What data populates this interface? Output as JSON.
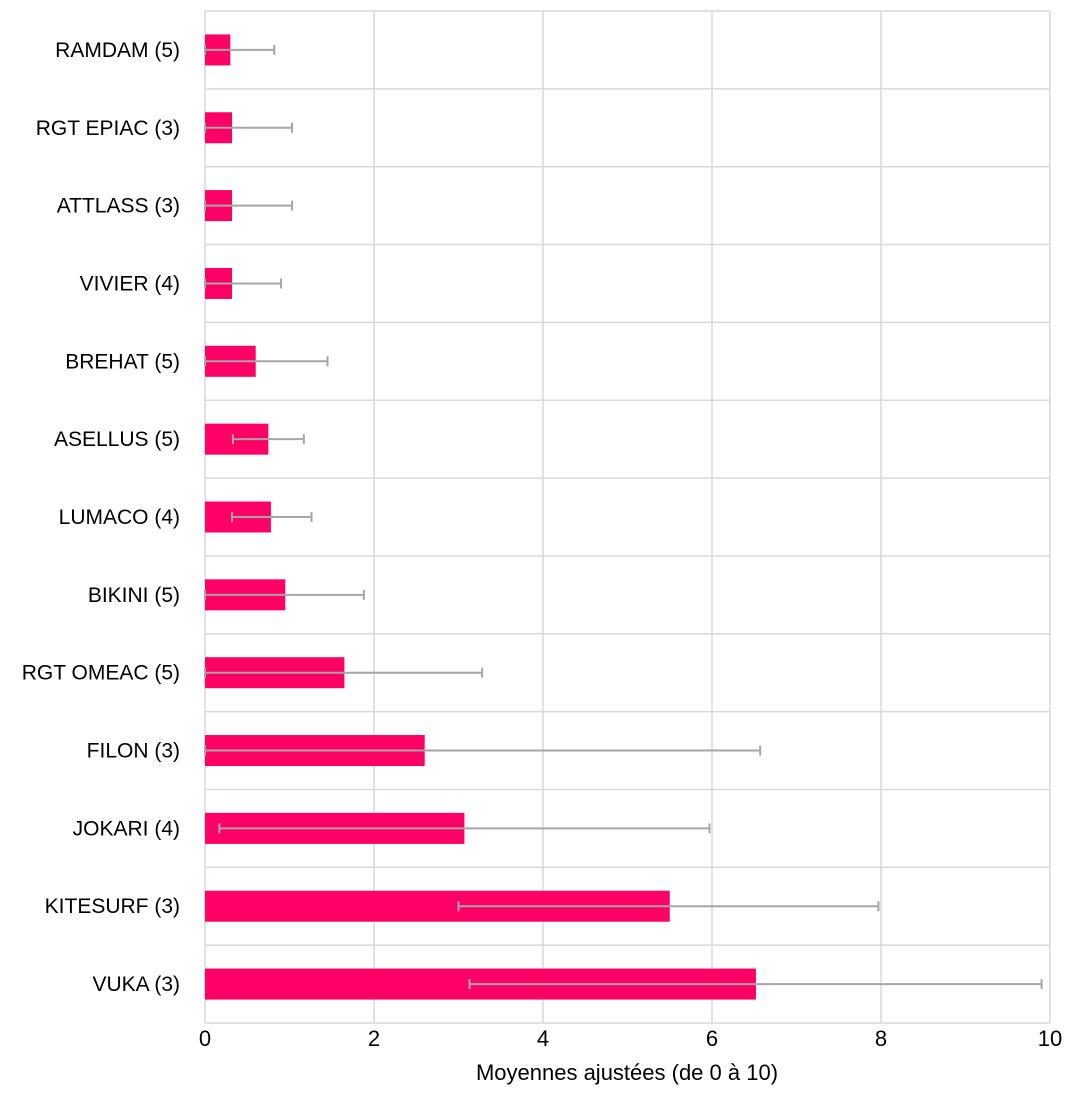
{
  "chart_data": {
    "type": "bar",
    "orientation": "horizontal",
    "title": "",
    "xlabel": "Moyennes ajustées (de 0 à 10)",
    "ylabel": "",
    "xlim": [
      0,
      10
    ],
    "x_ticks": [
      0,
      2,
      4,
      6,
      8,
      10
    ],
    "x_tick_labels": [
      "0",
      "2",
      "4",
      "6",
      "8",
      "10"
    ],
    "grid": true,
    "legend": "none",
    "bar_color": "#ff0066",
    "errorbar_color": "#a6a6a6",
    "grid_color": "#d9d9d9",
    "categories": [
      "RAMDAM (5)",
      "RGT EPIAC (3)",
      "ATTLASS (3)",
      "VIVIER (4)",
      "BREHAT (5)",
      "ASELLUS (5)",
      "LUMACO (4)",
      "BIKINI (5)",
      "RGT OMEAC (5)",
      "FILON (3)",
      "JOKARI (4)",
      "KITESURF (3)",
      "VUKA (3)"
    ],
    "values": [
      0.3,
      0.32,
      0.32,
      0.32,
      0.6,
      0.75,
      0.78,
      0.95,
      1.65,
      2.6,
      3.07,
      5.5,
      6.52
    ],
    "error_low": [
      0.0,
      0.0,
      0.0,
      0.0,
      0.0,
      0.33,
      0.32,
      0.0,
      0.0,
      0.0,
      0.17,
      3.0,
      3.13
    ],
    "error_high": [
      0.82,
      1.03,
      1.03,
      0.9,
      1.45,
      1.17,
      1.26,
      1.88,
      3.28,
      6.57,
      5.97,
      7.97,
      9.9
    ]
  }
}
